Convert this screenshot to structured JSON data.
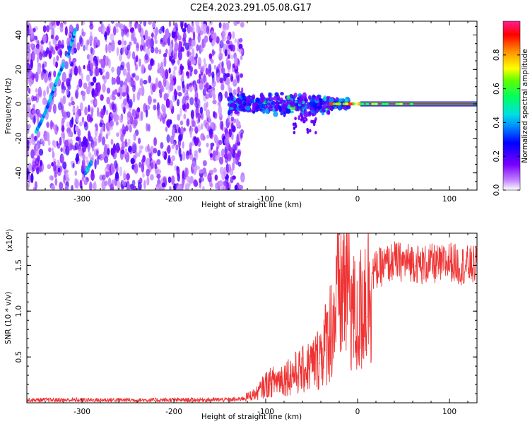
{
  "title": "C2E4.2023.291.05.08.G17",
  "chart_data": [
    {
      "type": "heatmap",
      "xlabel": "Height of straight line (km)",
      "ylabel": "Frequency (Hz)",
      "xlim": [
        -360,
        130
      ],
      "ylim": [
        -50,
        48
      ],
      "x_ticks": [
        "-300",
        "-200",
        "-100",
        "0",
        "100"
      ],
      "y_ticks": [
        "40",
        "20",
        "0",
        "-20",
        "-40"
      ],
      "colorbar": {
        "label": "Normalized spectral amplitude",
        "range": [
          0.0,
          1.0
        ],
        "ticks": [
          "0.0",
          "0.2",
          "0.4",
          "0.6",
          "0.8"
        ],
        "colormap": "rainbow"
      },
      "features": [
        {
          "name": "noise",
          "x_range": [
            -360,
            -125
          ],
          "freq_range": [
            -50,
            48
          ],
          "amplitude": 0.05
        },
        {
          "name": "streak",
          "x": [
            -350,
            -345,
            -340,
            -335,
            -330,
            -325,
            -320
          ],
          "freq": [
            -16,
            -11,
            -5,
            2,
            10,
            17,
            23
          ],
          "amplitude": 0.3
        },
        {
          "name": "streak",
          "x": [
            -315,
            -311,
            -307
          ],
          "freq": [
            28,
            36,
            43
          ],
          "amplitude": 0.3
        },
        {
          "name": "streak",
          "x": [
            -296,
            -293,
            -290
          ],
          "freq": [
            -40,
            -37,
            -34
          ],
          "amplitude": 0.3
        },
        {
          "name": "cluster",
          "x_range": [
            -140,
            -10
          ],
          "freq_range": [
            -8,
            8
          ],
          "amplitude": 0.35
        },
        {
          "name": "carrier",
          "x_range": [
            -20,
            130
          ],
          "freq": 0,
          "amplitude": 0.9
        }
      ]
    },
    {
      "type": "line",
      "xlabel": "Height of straight line (km)",
      "ylabel": "SNR (10 * v/v)",
      "unit_label": "(x10",
      "unit_exp": "4",
      "xlim": [
        -360,
        130
      ],
      "ylim": [
        0,
        18500
      ],
      "x_ticks": [
        "-300",
        "-200",
        "-100",
        "0",
        "100"
      ],
      "y_ticks": [
        "0.5",
        "1.0",
        "1.5"
      ],
      "color": "#ef3333",
      "series": [
        {
          "x": [
            -360,
            -300,
            -200,
            -130,
            -110,
            -100,
            -80,
            -60,
            -45,
            -35,
            -25,
            -20,
            -15,
            -10,
            -5,
            0,
            5,
            10,
            15,
            20,
            30,
            40,
            50,
            60,
            70,
            80,
            90,
            100,
            110,
            120,
            130
          ],
          "y": [
            300,
            300,
            300,
            350,
            1000,
            2000,
            2800,
            3500,
            4500,
            6500,
            9500,
            12000,
            13000,
            13500,
            10000,
            8000,
            11000,
            12500,
            14000,
            14500,
            15000,
            15500,
            15300,
            15400,
            15000,
            15200,
            15000,
            15500,
            15000,
            15000,
            15000
          ]
        }
      ]
    }
  ]
}
